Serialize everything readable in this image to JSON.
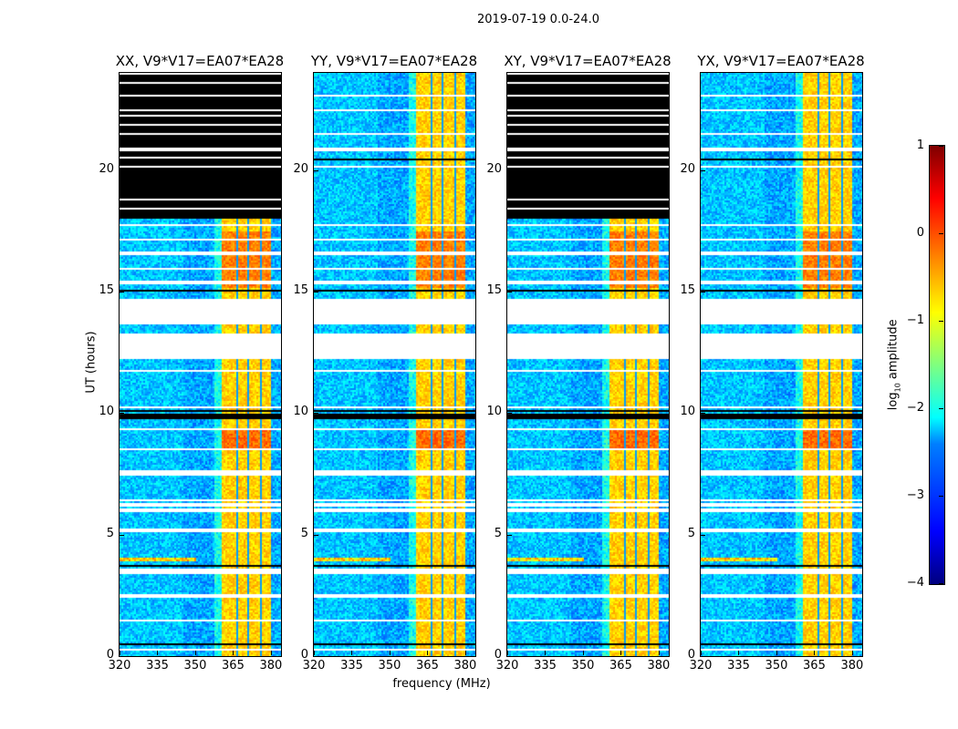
{
  "figure": {
    "suptitle": "2019-07-19 0.0-24.0"
  },
  "chart_data": {
    "type": "heatmap",
    "panels": [
      {
        "title": "XX, V9*V17=EA07*EA28",
        "no_data_above_hours": 18.0
      },
      {
        "title": "YY, V9*V17=EA07*EA28",
        "no_data_above_hours": null
      },
      {
        "title": "XY, V9*V17=EA07*EA28",
        "no_data_above_hours": 18.0
      },
      {
        "title": "YX, V9*V17=EA07*EA28",
        "no_data_above_hours": null
      }
    ],
    "xlabel": "frequency (MHz)",
    "ylabel": "UT (hours)",
    "xlim": [
      320,
      384
    ],
    "ylim": [
      0,
      24
    ],
    "xticks": [
      "320",
      "335",
      "350",
      "365",
      "380"
    ],
    "xtick_values": [
      320,
      335,
      350,
      365,
      380
    ],
    "yticks": [
      "0",
      "5",
      "10",
      "15",
      "20"
    ],
    "ytick_values": [
      0,
      5,
      10,
      15,
      20
    ],
    "bright_band_mhz": [
      360.4,
      380
    ],
    "flagged_gaps_hours": [
      [
        12.3,
        13.3
      ],
      [
        13.7,
        14.7
      ]
    ],
    "colorbar": {
      "label_main": "log",
      "label_sub": "10",
      "label_rest": " amplitude",
      "range": [
        -4,
        1
      ],
      "ticks": [
        "1",
        "0",
        "−1",
        "−2",
        "−3",
        "−4"
      ],
      "tick_values": [
        1,
        0,
        -1,
        -2,
        -3,
        -4
      ],
      "colormap": "jet"
    }
  }
}
